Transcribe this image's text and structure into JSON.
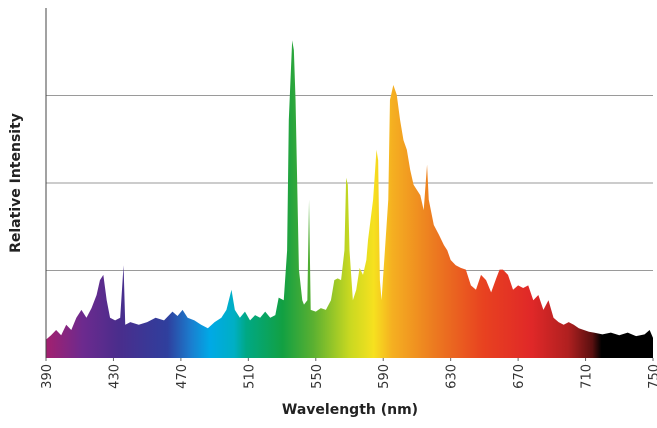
{
  "chart_data": {
    "type": "area",
    "x_label": "Wavelength (nm)",
    "y_label": "Relative Intensity",
    "xlim": [
      390,
      750
    ],
    "xticks": [
      390,
      430,
      470,
      510,
      550,
      590,
      630,
      670,
      710,
      750
    ],
    "ylim": [
      0,
      4
    ],
    "yticks": [
      1,
      2,
      3
    ],
    "grid": true,
    "x": [
      390,
      393,
      396,
      399,
      402,
      405,
      408,
      411,
      414,
      417,
      420,
      422,
      424,
      426,
      428,
      431,
      434,
      436,
      437,
      440,
      445,
      450,
      455,
      460,
      465,
      468,
      471,
      474,
      478,
      482,
      486,
      490,
      494,
      497,
      500,
      502,
      505,
      508,
      511,
      514,
      517,
      520,
      523,
      526,
      528,
      531,
      533,
      534,
      536,
      537,
      538,
      540,
      542,
      543,
      545,
      546,
      547,
      550,
      553,
      556,
      559,
      561,
      563,
      565,
      567,
      568,
      569,
      570,
      572,
      574,
      576,
      578,
      580,
      581,
      584,
      586,
      587,
      588,
      589,
      591,
      593,
      594,
      596,
      598,
      600,
      602,
      604,
      606,
      608,
      610,
      612,
      614,
      616,
      617,
      620,
      623,
      626,
      628,
      630,
      633,
      636,
      639,
      642,
      645,
      648,
      651,
      654,
      657,
      659,
      661,
      664,
      667,
      670,
      673,
      676,
      679,
      682,
      685,
      688,
      691,
      694,
      697,
      700,
      703,
      706,
      709,
      712,
      715,
      720,
      725,
      730,
      735,
      740,
      745,
      748,
      750
    ],
    "values": [
      0.21,
      0.26,
      0.32,
      0.26,
      0.38,
      0.32,
      0.46,
      0.55,
      0.46,
      0.57,
      0.72,
      0.89,
      0.95,
      0.66,
      0.46,
      0.43,
      0.46,
      1.06,
      0.38,
      0.41,
      0.38,
      0.41,
      0.46,
      0.43,
      0.53,
      0.48,
      0.55,
      0.46,
      0.43,
      0.38,
      0.34,
      0.41,
      0.46,
      0.55,
      0.78,
      0.55,
      0.46,
      0.53,
      0.43,
      0.49,
      0.46,
      0.53,
      0.46,
      0.49,
      0.69,
      0.66,
      1.23,
      2.72,
      3.63,
      3.52,
      2.95,
      1.01,
      0.66,
      0.61,
      0.66,
      1.81,
      0.55,
      0.53,
      0.57,
      0.55,
      0.66,
      0.89,
      0.91,
      0.89,
      1.23,
      2.06,
      1.98,
      1.23,
      0.66,
      0.78,
      1.03,
      0.95,
      1.12,
      1.35,
      1.81,
      2.38,
      2.26,
      0.89,
      0.66,
      1.23,
      1.81,
      2.95,
      3.12,
      3.01,
      2.72,
      2.49,
      2.38,
      2.15,
      1.98,
      1.92,
      1.86,
      1.69,
      2.21,
      1.81,
      1.52,
      1.41,
      1.29,
      1.23,
      1.12,
      1.06,
      1.03,
      1.01,
      0.83,
      0.78,
      0.95,
      0.89,
      0.75,
      0.91,
      1.01,
      1.01,
      0.95,
      0.78,
      0.83,
      0.8,
      0.83,
      0.66,
      0.72,
      0.55,
      0.66,
      0.46,
      0.41,
      0.38,
      0.41,
      0.38,
      0.34,
      0.32,
      0.3,
      0.29,
      0.27,
      0.29,
      0.26,
      0.29,
      0.25,
      0.27,
      0.32,
      0.23
    ]
  }
}
